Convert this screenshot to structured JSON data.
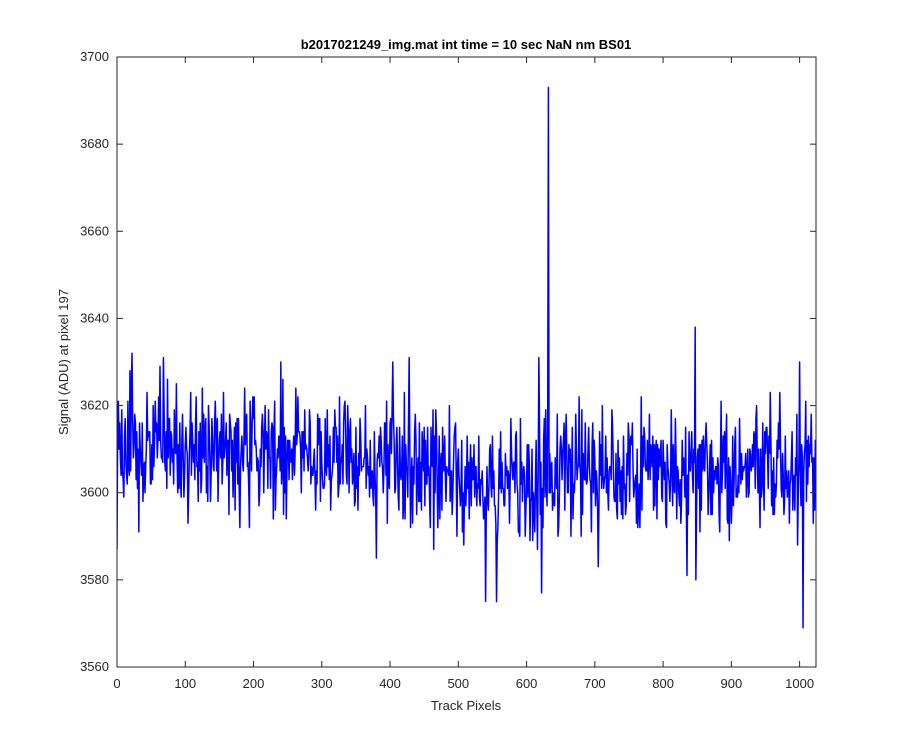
{
  "chart_data": {
    "type": "line",
    "title": "b2017021249_img.mat int time = 10 sec  NaN nm BS01",
    "xlabel": "Track Pixels",
    "ylabel": "Signal (ADU) at pixel 197",
    "xlim": [
      0,
      1024
    ],
    "ylim": [
      3560,
      3700
    ],
    "xticks": [
      0,
      100,
      200,
      300,
      400,
      500,
      600,
      700,
      800,
      900,
      1000
    ],
    "yticks": [
      3560,
      3580,
      3600,
      3620,
      3640,
      3660,
      3680,
      3700
    ],
    "grid": false,
    "legend": "none",
    "series": [
      {
        "color": "#0000ff",
        "noise_amplitude": 7,
        "seed": 197,
        "baseline": [
          [
            0,
            3611
          ],
          [
            200,
            3610
          ],
          [
            400,
            3607
          ],
          [
            500,
            3603
          ],
          [
            600,
            3603
          ],
          [
            700,
            3605
          ],
          [
            800,
            3605
          ],
          [
            900,
            3605
          ],
          [
            1024,
            3604
          ]
        ],
        "points": [
          [
            0,
            3587
          ],
          [
            2,
            3621
          ],
          [
            5,
            3608
          ],
          [
            22,
            3632
          ],
          [
            38,
            3598
          ],
          [
            68,
            3631
          ],
          [
            180,
            3592
          ],
          [
            240,
            3630
          ],
          [
            380,
            3585
          ],
          [
            404,
            3630
          ],
          [
            428,
            3631
          ],
          [
            470,
            3592
          ],
          [
            498,
            3590
          ],
          [
            540,
            3575
          ],
          [
            556,
            3575
          ],
          [
            590,
            3590
          ],
          [
            618,
            3631
          ],
          [
            622,
            3577
          ],
          [
            631,
            3620
          ],
          [
            632,
            3693
          ],
          [
            633,
            3600
          ],
          [
            645,
            3618
          ],
          [
            680,
            3590
          ],
          [
            705,
            3583
          ],
          [
            820,
            3594
          ],
          [
            835,
            3581
          ],
          [
            847,
            3638
          ],
          [
            848,
            3580
          ],
          [
            1000,
            3630
          ],
          [
            1005,
            3569
          ],
          [
            1010,
            3598
          ]
        ]
      }
    ]
  }
}
